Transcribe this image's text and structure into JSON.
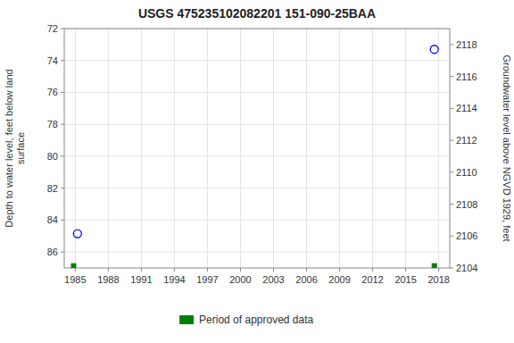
{
  "chart_data": {
    "type": "scatter",
    "title": "USGS 475235102082201 151-090-25BAA",
    "y_label": "Depth to water level, feet below land\n surface",
    "y2_label": "Groundwater level above NGVD 1929, feet",
    "xlim": [
      1984.0,
      2019.0
    ],
    "xticks": [
      1985,
      1988,
      1991,
      1994,
      1997,
      2000,
      2003,
      2006,
      2009,
      2012,
      2015,
      2018
    ],
    "ylim": [
      87.0,
      72.0
    ],
    "yticks": [
      72,
      74,
      76,
      78,
      80,
      82,
      84,
      86
    ],
    "y2lim": [
      2104.0,
      2119.0
    ],
    "y2ticks": [
      2104,
      2106,
      2108,
      2110,
      2112,
      2114,
      2116,
      2118
    ],
    "grid": true,
    "legend": "bottom",
    "series": [
      {
        "color": "#0000ff",
        "marker": "open-circle",
        "x": [
          1985.2,
          2017.6
        ],
        "values": [
          84.85,
          73.3
        ]
      },
      {
        "name": "Period of approved data",
        "color": "#008000",
        "marker": "square",
        "x": [
          1984.85,
          2017.6
        ],
        "values": [
          86.87,
          86.87
        ]
      }
    ]
  }
}
